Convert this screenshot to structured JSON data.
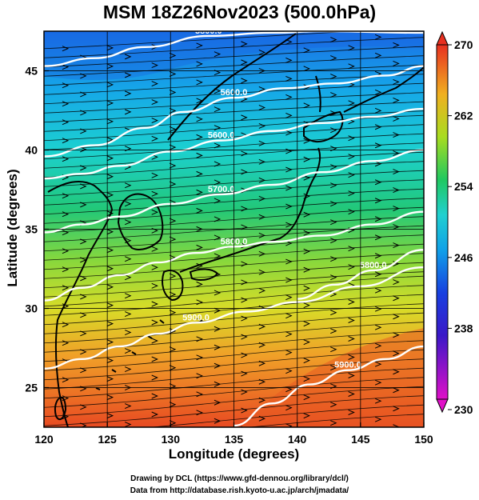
{
  "figure": {
    "title": "MSM 18Z26Nov2023 (500.0hPa)",
    "xlabel": "Longitude (degrees)",
    "ylabel": "Latitude  (degrees)",
    "credit_line1": "Drawing by DCL (https://www.gfd-dennou.org/library/dcl/)",
    "credit_line2": "Data from http://database.rish.kyoto-u.ac.jp/arch/jmadata/"
  },
  "chart_data": {
    "type": "heatmap",
    "title": "MSM 18Z26Nov2023 (500.0hPa)",
    "xlabel": "Longitude (degrees)",
    "ylabel": "Latitude  (degrees)",
    "xlim": [
      120,
      150
    ],
    "ylim": [
      22.5,
      47.5
    ],
    "x_ticks": [
      120,
      125,
      130,
      135,
      140,
      145,
      150
    ],
    "y_ticks": [
      25,
      30,
      35,
      40,
      45
    ],
    "colorbar": {
      "min": 230,
      "max": 270,
      "ticks": [
        230,
        238,
        246,
        254,
        262,
        270
      ],
      "colors": [
        "#e010c8",
        "#2020c8",
        "#1070e0",
        "#20d0e0",
        "#20c860",
        "#c8e020",
        "#f0a020",
        "#e83020"
      ]
    },
    "contours": [
      {
        "label": "5800.0",
        "points": [
          [
            120,
            45.3
          ],
          [
            124,
            45.8
          ],
          [
            128,
            46.5
          ],
          [
            133,
            47.2
          ],
          [
            138,
            47.4
          ],
          [
            142,
            47.5
          ],
          [
            150,
            47.4
          ]
        ]
      },
      {
        "label": "5600.0",
        "points": [
          [
            120,
            39.6
          ],
          [
            124,
            40.3
          ],
          [
            128,
            41.4
          ],
          [
            131,
            42.4
          ],
          [
            135,
            43.3
          ],
          [
            139,
            43.9
          ],
          [
            143,
            44.2
          ],
          [
            147,
            44.7
          ],
          [
            150,
            45.3
          ]
        ]
      },
      {
        "label": "5600.0",
        "points": [
          [
            120,
            38.2
          ],
          [
            123,
            38.5
          ],
          [
            126,
            39.0
          ],
          [
            130,
            39.9
          ],
          [
            134,
            40.6
          ],
          [
            138,
            41.2
          ],
          [
            142,
            41.7
          ],
          [
            146,
            42.1
          ],
          [
            150,
            42.6
          ]
        ]
      },
      {
        "label": "5700.0",
        "points": [
          [
            120,
            34.8
          ],
          [
            123,
            35.3
          ],
          [
            126,
            35.8
          ],
          [
            130,
            36.6
          ],
          [
            134,
            37.2
          ],
          [
            138,
            37.8
          ],
          [
            142,
            38.6
          ],
          [
            146,
            39.3
          ],
          [
            150,
            40.0
          ]
        ]
      },
      {
        "label": "5800.0",
        "points": [
          [
            120,
            30.5
          ],
          [
            123,
            31.3
          ],
          [
            126,
            32.1
          ],
          [
            129,
            32.9
          ],
          [
            132,
            33.5
          ],
          [
            135,
            33.9
          ],
          [
            138,
            34.2
          ],
          [
            142,
            34.6
          ],
          [
            146,
            35.3
          ],
          [
            150,
            36.1
          ]
        ]
      },
      {
        "label": "5800.0",
        "points": [
          [
            140,
            30.6
          ],
          [
            143,
            31.5
          ],
          [
            146,
            32.4
          ],
          [
            150,
            33.7
          ]
        ]
      },
      {
        "label": "5900.0",
        "points": [
          [
            120,
            26.2
          ],
          [
            123,
            26.8
          ],
          [
            126,
            27.6
          ],
          [
            129,
            28.4
          ],
          [
            132,
            29.1
          ],
          [
            136,
            29.8
          ],
          [
            140,
            30.4
          ],
          [
            145,
            31.4
          ],
          [
            150,
            32.6
          ]
        ]
      },
      {
        "label": "5900.0",
        "points": [
          [
            135,
            22.6
          ],
          [
            138,
            24.0
          ],
          [
            141,
            25.2
          ],
          [
            144,
            26.1
          ],
          [
            147,
            26.8
          ],
          [
            150,
            27.6
          ]
        ]
      }
    ],
    "wind_field": {
      "description": "streamlines, predominantly westerly",
      "arrows": "present"
    },
    "grid": true
  }
}
